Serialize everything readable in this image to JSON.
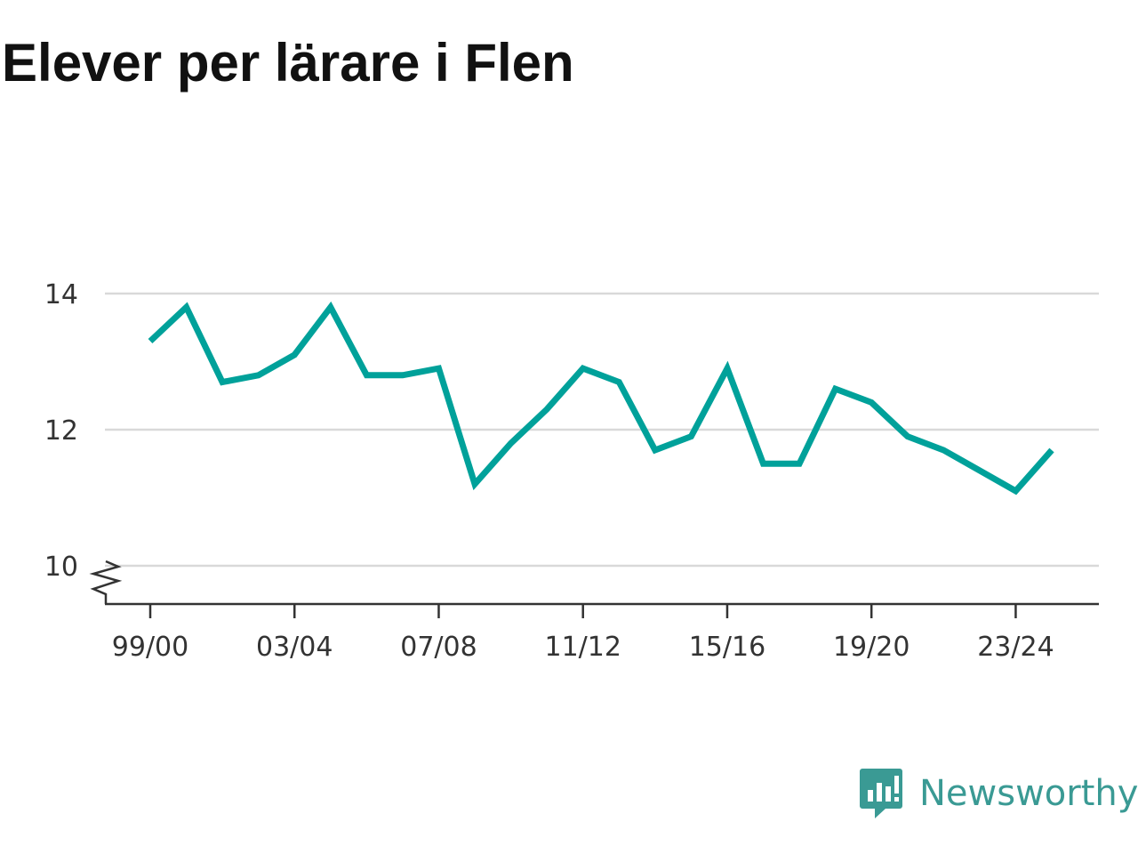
{
  "title": "Elever per lärare i Flen",
  "brand": {
    "name": "Newsworthy",
    "icon": "newsworthy-logo-icon",
    "color": "#3a9a94"
  },
  "chart_data": {
    "type": "line",
    "title": "Elever per lärare i Flen",
    "xlabel": "",
    "ylabel": "",
    "x": [
      "99/00",
      "00/01",
      "01/02",
      "02/03",
      "03/04",
      "04/05",
      "05/06",
      "06/07",
      "07/08",
      "08/09",
      "09/10",
      "10/11",
      "11/12",
      "12/13",
      "13/14",
      "14/15",
      "15/16",
      "16/17",
      "17/18",
      "18/19",
      "19/20",
      "20/21",
      "21/22",
      "22/23",
      "23/24",
      "24/25"
    ],
    "x_tick_labels": [
      "99/00",
      "03/04",
      "07/08",
      "11/12",
      "15/16",
      "19/20",
      "23/24"
    ],
    "y_ticks": [
      "10",
      "12",
      "14"
    ],
    "ylim": [
      9.6,
      14.7
    ],
    "y_axis_break": true,
    "grid": true,
    "series": [
      {
        "values": [
          13.3,
          13.8,
          12.7,
          12.8,
          13.1,
          13.8,
          12.8,
          12.8,
          12.9,
          11.2,
          11.8,
          12.3,
          12.9,
          12.7,
          11.7,
          11.9,
          12.9,
          11.5,
          11.5,
          12.6,
          12.4,
          11.9,
          11.7,
          11.4,
          11.1,
          11.7
        ],
        "color": "#00a19a"
      }
    ]
  }
}
